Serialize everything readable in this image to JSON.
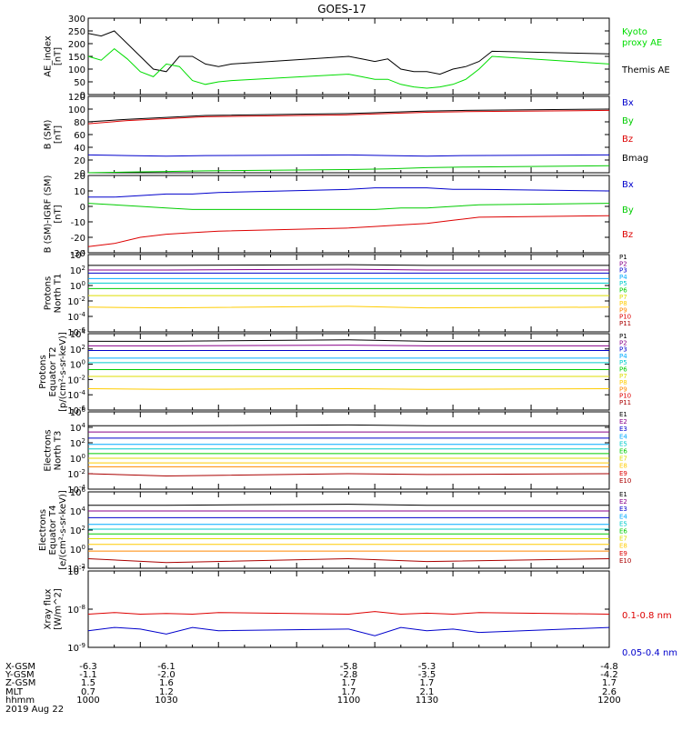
{
  "title": "GOES-17",
  "chart_data": [
    {
      "type": "line",
      "ylabel": [
        "AE_index",
        "[nT]"
      ],
      "yticks": [
        "300",
        "250",
        "200",
        "150",
        "100",
        "50",
        "0"
      ],
      "ylim": [
        0,
        300
      ],
      "x": [
        1000,
        1005,
        1010,
        1015,
        1020,
        1025,
        1030,
        1035,
        1040,
        1045,
        1050,
        1055,
        1100,
        1105,
        1110,
        1115,
        1120,
        1125,
        1130,
        1135,
        1140,
        1145,
        1150,
        1155,
        1200
      ],
      "series": [
        {
          "name": "Themis AE",
          "color": "#000000",
          "values": [
            240,
            230,
            250,
            200,
            150,
            100,
            90,
            150,
            150,
            120,
            110,
            120,
            150,
            140,
            130,
            140,
            100,
            90,
            90,
            80,
            100,
            110,
            130,
            170,
            160
          ]
        },
        {
          "name": "Kyoto proxy AE",
          "color": "#00dd00",
          "values": [
            150,
            135,
            180,
            140,
            90,
            70,
            120,
            110,
            55,
            40,
            50,
            55,
            80,
            70,
            60,
            60,
            40,
            30,
            25,
            30,
            40,
            60,
            100,
            150,
            120
          ]
        }
      ],
      "legend": [
        {
          "label": "Kyoto",
          "color": "#00dd00"
        },
        {
          "label": "proxy AE",
          "color": "#00dd00"
        },
        {
          "label": "Themis AE",
          "color": "#000000"
        }
      ]
    },
    {
      "type": "line",
      "ylabel": [
        "B (SM)",
        "[nT]"
      ],
      "yticks": [
        "120",
        "100",
        "80",
        "60",
        "40",
        "20",
        "0"
      ],
      "ylim": [
        0,
        120
      ],
      "x": [
        1000,
        1015,
        1030,
        1045,
        1100,
        1115,
        1130,
        1145,
        1200
      ],
      "series": [
        {
          "name": "Bmag",
          "color": "#000000",
          "values": [
            80,
            84,
            87,
            90,
            93,
            95,
            97,
            98,
            100
          ]
        },
        {
          "name": "Bz",
          "color": "#dd0000",
          "values": [
            77,
            82,
            85,
            88,
            91,
            93,
            95,
            96,
            98
          ]
        },
        {
          "name": "Bx",
          "color": "#0000cc",
          "values": [
            28,
            27,
            26,
            27,
            28,
            27,
            26,
            27,
            28
          ]
        },
        {
          "name": "By",
          "color": "#00cc00",
          "values": [
            0,
            1,
            2,
            3,
            5,
            6,
            8,
            9,
            11
          ]
        }
      ],
      "legend": [
        {
          "label": "Bx",
          "color": "#0000cc"
        },
        {
          "label": "By",
          "color": "#00cc00"
        },
        {
          "label": "Bz",
          "color": "#dd0000"
        },
        {
          "label": "Bmag",
          "color": "#000000"
        }
      ]
    },
    {
      "type": "line",
      "ylabel": [
        "B (SM)-IGRF (SM)",
        "[nT]"
      ],
      "yticks": [
        "20",
        "10",
        "0",
        "-10",
        "-20",
        "-30"
      ],
      "ylim": [
        -30,
        20
      ],
      "x": [
        1000,
        1010,
        1020,
        1030,
        1040,
        1050,
        1100,
        1110,
        1120,
        1130,
        1140,
        1150,
        1200
      ],
      "series": [
        {
          "name": "Bx",
          "color": "#0000cc",
          "values": [
            6,
            6,
            7,
            8,
            8,
            9,
            11,
            12,
            12,
            12,
            11,
            11,
            10
          ]
        },
        {
          "name": "By",
          "color": "#00cc00",
          "values": [
            2,
            1,
            0,
            -1,
            -2,
            -2,
            -2,
            -2,
            -1,
            -1,
            0,
            1,
            2
          ]
        },
        {
          "name": "Bz",
          "color": "#dd0000",
          "values": [
            -26,
            -24,
            -20,
            -18,
            -17,
            -16,
            -14,
            -13,
            -12,
            -11,
            -9,
            -7,
            -6
          ]
        }
      ],
      "legend": [
        {
          "label": "Bx",
          "color": "#0000cc"
        },
        {
          "label": "By",
          "color": "#00cc00"
        },
        {
          "label": "Bz",
          "color": "#dd0000"
        }
      ]
    },
    {
      "type": "line",
      "scale": "log",
      "ylabel": [
        "Protons",
        "North T1"
      ],
      "yticks": [
        "10^4",
        "10^2",
        "10^0",
        "10^-2",
        "10^-4",
        "10^-6"
      ],
      "ylim": [
        -6,
        4
      ],
      "x": [
        1000,
        1030,
        1100,
        1130,
        1200
      ],
      "series": [
        {
          "name": "P1",
          "color": "#000000",
          "values": [
            2.6,
            2.6,
            2.7,
            2.6,
            2.6
          ]
        },
        {
          "name": "P2",
          "color": "#880088",
          "values": [
            2.0,
            2.0,
            2.1,
            2.0,
            2.0
          ]
        },
        {
          "name": "P3",
          "color": "#0000cc",
          "values": [
            1.6,
            1.6,
            1.6,
            1.6,
            1.6
          ]
        },
        {
          "name": "P4",
          "color": "#00aaff",
          "values": [
            0.9,
            0.9,
            0.9,
            0.9,
            0.9
          ]
        },
        {
          "name": "P5",
          "color": "#00cccc",
          "values": [
            0.3,
            0.3,
            0.3,
            0.3,
            0.3
          ]
        },
        {
          "name": "P6",
          "color": "#00cc00",
          "values": [
            -0.4,
            -0.4,
            -0.4,
            -0.4,
            -0.4
          ]
        },
        {
          "name": "P7",
          "color": "#dddd00",
          "values": [
            -1.3,
            -1.3,
            -1.3,
            -1.3,
            -1.3
          ]
        },
        {
          "name": "P8",
          "color": "#ffcc00",
          "values": [
            -2.8,
            -2.9,
            -2.7,
            -2.9,
            -2.8
          ]
        }
      ],
      "legend": [
        {
          "label": "P1",
          "color": "#000000"
        },
        {
          "label": "P2",
          "color": "#880088"
        },
        {
          "label": "P3",
          "color": "#0000cc"
        },
        {
          "label": "P4",
          "color": "#00aaff"
        },
        {
          "label": "P5",
          "color": "#00cccc"
        },
        {
          "label": "P6",
          "color": "#00cc00"
        },
        {
          "label": "P7",
          "color": "#dddd00"
        },
        {
          "label": "P8",
          "color": "#ffcc00"
        },
        {
          "label": "P9",
          "color": "#ff8800"
        },
        {
          "label": "P10",
          "color": "#dd0000"
        },
        {
          "label": "P11",
          "color": "#aa0000"
        }
      ]
    },
    {
      "type": "line",
      "scale": "log",
      "ylabel": [
        "Protons",
        "Equator T2",
        "[p/(cm²-s-sr-keV)]"
      ],
      "yticks": [
        "10^4",
        "10^2",
        "10^0",
        "10^-2",
        "10^-4",
        "10^-6"
      ],
      "ylim": [
        -6,
        4
      ],
      "x": [
        1000,
        1030,
        1100,
        1130,
        1200
      ],
      "series": [
        {
          "name": "P1",
          "color": "#000000",
          "values": [
            3.0,
            3.0,
            3.2,
            3.0,
            3.0
          ]
        },
        {
          "name": "P2",
          "color": "#880088",
          "values": [
            2.4,
            2.4,
            2.5,
            2.4,
            2.4
          ]
        },
        {
          "name": "P3",
          "color": "#0000cc",
          "values": [
            1.8,
            1.8,
            1.8,
            1.8,
            1.8
          ]
        },
        {
          "name": "P4",
          "color": "#00aaff",
          "values": [
            0.8,
            0.8,
            0.8,
            0.8,
            0.8
          ]
        },
        {
          "name": "P5",
          "color": "#00cccc",
          "values": [
            0.2,
            0.2,
            0.2,
            0.2,
            0.2
          ]
        },
        {
          "name": "P6",
          "color": "#00cc00",
          "values": [
            -0.7,
            -0.7,
            -0.7,
            -0.7,
            -0.7
          ]
        },
        {
          "name": "P7",
          "color": "#dddd00",
          "values": [
            -1.6,
            -1.6,
            -1.6,
            -1.6,
            -1.6
          ]
        },
        {
          "name": "P8",
          "color": "#ffcc00",
          "values": [
            -3.2,
            -3.3,
            -3.2,
            -3.3,
            -3.2
          ]
        }
      ],
      "legend": [
        {
          "label": "P1",
          "color": "#000000"
        },
        {
          "label": "P2",
          "color": "#880088"
        },
        {
          "label": "P3",
          "color": "#0000cc"
        },
        {
          "label": "P4",
          "color": "#00aaff"
        },
        {
          "label": "P5",
          "color": "#00cccc"
        },
        {
          "label": "P6",
          "color": "#00cc00"
        },
        {
          "label": "P7",
          "color": "#dddd00"
        },
        {
          "label": "P8",
          "color": "#ffcc00"
        },
        {
          "label": "P9",
          "color": "#ff8800"
        },
        {
          "label": "P10",
          "color": "#dd0000"
        },
        {
          "label": "P11",
          "color": "#aa0000"
        }
      ]
    },
    {
      "type": "line",
      "scale": "log",
      "ylabel": [
        "Electrons",
        "North T3"
      ],
      "yticks": [
        "10^6",
        "10^4",
        "10^2",
        "10^0",
        "10^-2",
        "10^-4"
      ],
      "ylim": [
        -4,
        6
      ],
      "x": [
        1000,
        1030,
        1100,
        1130,
        1200
      ],
      "series": [
        {
          "name": "E1",
          "color": "#000000",
          "values": [
            4.2,
            4.2,
            4.3,
            4.2,
            4.2
          ]
        },
        {
          "name": "E2",
          "color": "#880088",
          "values": [
            3.4,
            3.4,
            3.4,
            3.4,
            3.4
          ]
        },
        {
          "name": "E3",
          "color": "#0000cc",
          "values": [
            2.6,
            2.6,
            2.6,
            2.6,
            2.6
          ]
        },
        {
          "name": "E4",
          "color": "#00aaff",
          "values": [
            1.8,
            1.8,
            1.8,
            1.8,
            1.8
          ]
        },
        {
          "name": "E5",
          "color": "#00cccc",
          "values": [
            1.2,
            1.2,
            1.2,
            1.2,
            1.2
          ]
        },
        {
          "name": "E6",
          "color": "#00cc00",
          "values": [
            0.6,
            0.6,
            0.6,
            0.6,
            0.6
          ]
        },
        {
          "name": "E7",
          "color": "#dddd00",
          "values": [
            0.0,
            0.0,
            0.0,
            0.0,
            0.0
          ]
        },
        {
          "name": "E8",
          "color": "#ffcc00",
          "values": [
            -0.6,
            -0.6,
            -0.6,
            -0.6,
            -0.6
          ]
        },
        {
          "name": "E9",
          "color": "#ff8800",
          "values": [
            -1.1,
            -1.1,
            -1.1,
            -1.1,
            -1.1
          ]
        },
        {
          "name": "E10",
          "color": "#aa0000",
          "values": [
            -2.0,
            -2.3,
            -2.0,
            -2.1,
            -2.0
          ]
        }
      ],
      "legend": [
        {
          "label": "E1",
          "color": "#000000"
        },
        {
          "label": "E2",
          "color": "#880088"
        },
        {
          "label": "E3",
          "color": "#0000cc"
        },
        {
          "label": "E4",
          "color": "#00aaff"
        },
        {
          "label": "E5",
          "color": "#00cccc"
        },
        {
          "label": "E6",
          "color": "#00cc00"
        },
        {
          "label": "E7",
          "color": "#dddd00"
        },
        {
          "label": "E8",
          "color": "#ffcc00"
        },
        {
          "label": "E9",
          "color": "#dd0000"
        },
        {
          "label": "E10",
          "color": "#aa0000"
        }
      ]
    },
    {
      "type": "line",
      "scale": "log",
      "ylabel": [
        "Electrons",
        "Equator T4",
        "[e/(cm²-s-sr-keV)]"
      ],
      "yticks": [
        "10^6",
        "10^4",
        "10^2",
        "10^0",
        "10^-2"
      ],
      "ylim": [
        -2,
        6
      ],
      "x": [
        1000,
        1030,
        1100,
        1130,
        1200
      ],
      "series": [
        {
          "name": "E1",
          "color": "#000000",
          "values": [
            4.6,
            4.6,
            4.7,
            4.6,
            4.6
          ]
        },
        {
          "name": "E2",
          "color": "#880088",
          "values": [
            4.0,
            4.0,
            4.0,
            4.0,
            4.0
          ]
        },
        {
          "name": "E3",
          "color": "#0000cc",
          "values": [
            3.3,
            3.3,
            3.3,
            3.3,
            3.3
          ]
        },
        {
          "name": "E4",
          "color": "#00aaff",
          "values": [
            2.6,
            2.6,
            2.6,
            2.6,
            2.6
          ]
        },
        {
          "name": "E5",
          "color": "#00cccc",
          "values": [
            2.1,
            2.1,
            2.1,
            2.1,
            2.1
          ]
        },
        {
          "name": "E6",
          "color": "#00cc00",
          "values": [
            1.6,
            1.6,
            1.6,
            1.6,
            1.6
          ]
        },
        {
          "name": "E7",
          "color": "#dddd00",
          "values": [
            1.1,
            1.1,
            1.1,
            1.1,
            1.1
          ]
        },
        {
          "name": "E8",
          "color": "#ffcc00",
          "values": [
            0.5,
            0.5,
            0.5,
            0.5,
            0.5
          ]
        },
        {
          "name": "E9",
          "color": "#ff8800",
          "values": [
            -0.2,
            -0.2,
            -0.2,
            -0.2,
            -0.2
          ]
        },
        {
          "name": "E10",
          "color": "#aa0000",
          "values": [
            -1.0,
            -1.4,
            -1.0,
            -1.3,
            -1.0
          ]
        }
      ],
      "legend": [
        {
          "label": "E1",
          "color": "#000000"
        },
        {
          "label": "E2",
          "color": "#880088"
        },
        {
          "label": "E3",
          "color": "#0000cc"
        },
        {
          "label": "E4",
          "color": "#00aaff"
        },
        {
          "label": "E5",
          "color": "#00cccc"
        },
        {
          "label": "E6",
          "color": "#00cc00"
        },
        {
          "label": "E7",
          "color": "#dddd00"
        },
        {
          "label": "E8",
          "color": "#ffcc00"
        },
        {
          "label": "E9",
          "color": "#dd0000"
        },
        {
          "label": "E10",
          "color": "#aa0000"
        }
      ]
    },
    {
      "type": "line",
      "scale": "log",
      "ylabel": [
        "Xray flux",
        "[W/m^2]"
      ],
      "yticks": [
        "10^-7",
        "10^-8",
        "10^-9"
      ],
      "ylim": [
        -9.3,
        -7
      ],
      "x": [
        1000,
        1010,
        1020,
        1030,
        1040,
        1050,
        1100,
        1110,
        1120,
        1130,
        1140,
        1150,
        1200
      ],
      "series": [
        {
          "name": "0.1-0.8 nm",
          "color": "#dd0000",
          "values": [
            -8.3,
            -8.25,
            -8.3,
            -8.28,
            -8.3,
            -8.25,
            -8.3,
            -8.22,
            -8.3,
            -8.27,
            -8.3,
            -8.25,
            -8.3
          ]
        },
        {
          "name": "0.05-0.4 nm",
          "color": "#0000cc",
          "values": [
            -8.8,
            -8.7,
            -8.75,
            -8.9,
            -8.7,
            -8.8,
            -8.75,
            -8.95,
            -8.7,
            -8.8,
            -8.75,
            -8.85,
            -8.7
          ]
        }
      ],
      "legend": [
        {
          "label": "0.1-0.8 nm",
          "color": "#dd0000"
        },
        {
          "label": "0.05-0.4 nm",
          "color": "#0000cc"
        }
      ]
    }
  ],
  "footer": {
    "rows": [
      {
        "label": "X-GSM",
        "values": [
          "-6.3",
          "-6.1",
          "-5.8",
          "-5.3",
          "-4.8"
        ]
      },
      {
        "label": "Y-GSM",
        "values": [
          "-1.1",
          "-2.0",
          "-2.8",
          "-3.5",
          "-4.2"
        ]
      },
      {
        "label": "Z-GSM",
        "values": [
          "1.5",
          "1.6",
          "1.7",
          "1.7",
          "1.7"
        ]
      },
      {
        "label": "MLT",
        "values": [
          "0.7",
          "1.2",
          "1.7",
          "2.1",
          "2.6"
        ]
      },
      {
        "label": "hhmm",
        "values": [
          "1000",
          "1030",
          "1100",
          "1130",
          "1200"
        ]
      }
    ],
    "date": "2019 Aug 22"
  }
}
